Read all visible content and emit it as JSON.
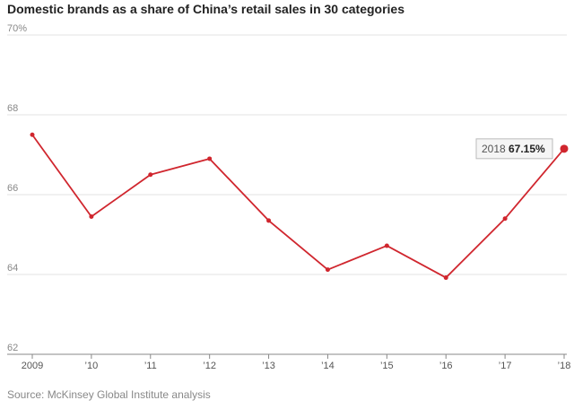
{
  "chart_data": {
    "type": "line",
    "title": "Domestic brands as a share of China’s retail sales in 30 categories",
    "source": "Source: McKinsey Global Institute analysis",
    "xlabel": "",
    "ylabel": "",
    "x": [
      2009,
      2010,
      2011,
      2012,
      2013,
      2014,
      2015,
      2016,
      2017,
      2018
    ],
    "x_tick_labels": [
      "2009",
      "’10",
      "’11",
      "’12",
      "’13",
      "’14",
      "’15",
      "’16",
      "’17",
      "’18"
    ],
    "y_tick_labels": [
      "70%",
      "68",
      "66",
      "64",
      "62"
    ],
    "y_ticks": [
      70,
      68,
      66,
      64,
      62
    ],
    "ylim": [
      62,
      70
    ],
    "series": [
      {
        "values": [
          67.5,
          65.45,
          66.5,
          66.9,
          65.35,
          64.12,
          64.72,
          63.92,
          65.4,
          67.15
        ]
      }
    ],
    "highlight": {
      "year_label": "2018",
      "value_label": "67.15%"
    },
    "line_color": "#d0262e",
    "grid": true
  }
}
